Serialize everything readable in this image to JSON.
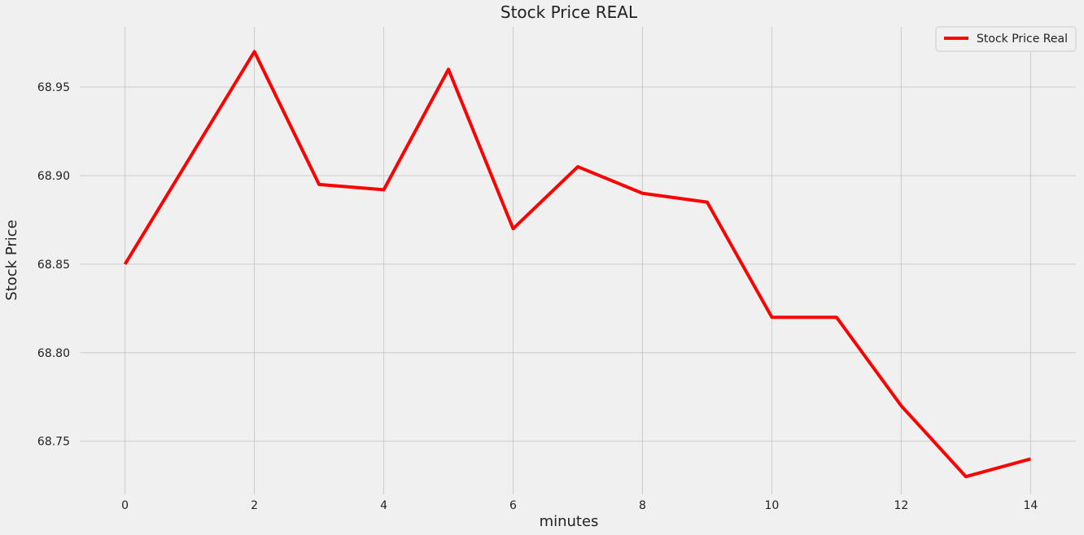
{
  "chart_data": {
    "type": "line",
    "title": "Stock Price REAL",
    "xlabel": "minutes",
    "ylabel": "Stock Price",
    "x": [
      0,
      1,
      2,
      3,
      4,
      5,
      6,
      7,
      8,
      9,
      10,
      11,
      12,
      13,
      14
    ],
    "series": [
      {
        "name": "Stock Price Real",
        "color": "#ff0000",
        "values": [
          68.85,
          68.91,
          68.97,
          68.895,
          68.892,
          68.96,
          68.87,
          68.905,
          68.89,
          68.885,
          68.82,
          68.82,
          68.77,
          68.73,
          68.74
        ]
      }
    ],
    "xticks": [
      "0",
      "2",
      "4",
      "6",
      "8",
      "10",
      "12",
      "14"
    ],
    "yticks": [
      "68.75",
      "68.80",
      "68.85",
      "68.90",
      "68.95"
    ],
    "xlim": [
      -0.7,
      14.7
    ],
    "ylim": [
      68.72,
      68.984
    ],
    "grid": true,
    "legend_position": "top-right"
  }
}
